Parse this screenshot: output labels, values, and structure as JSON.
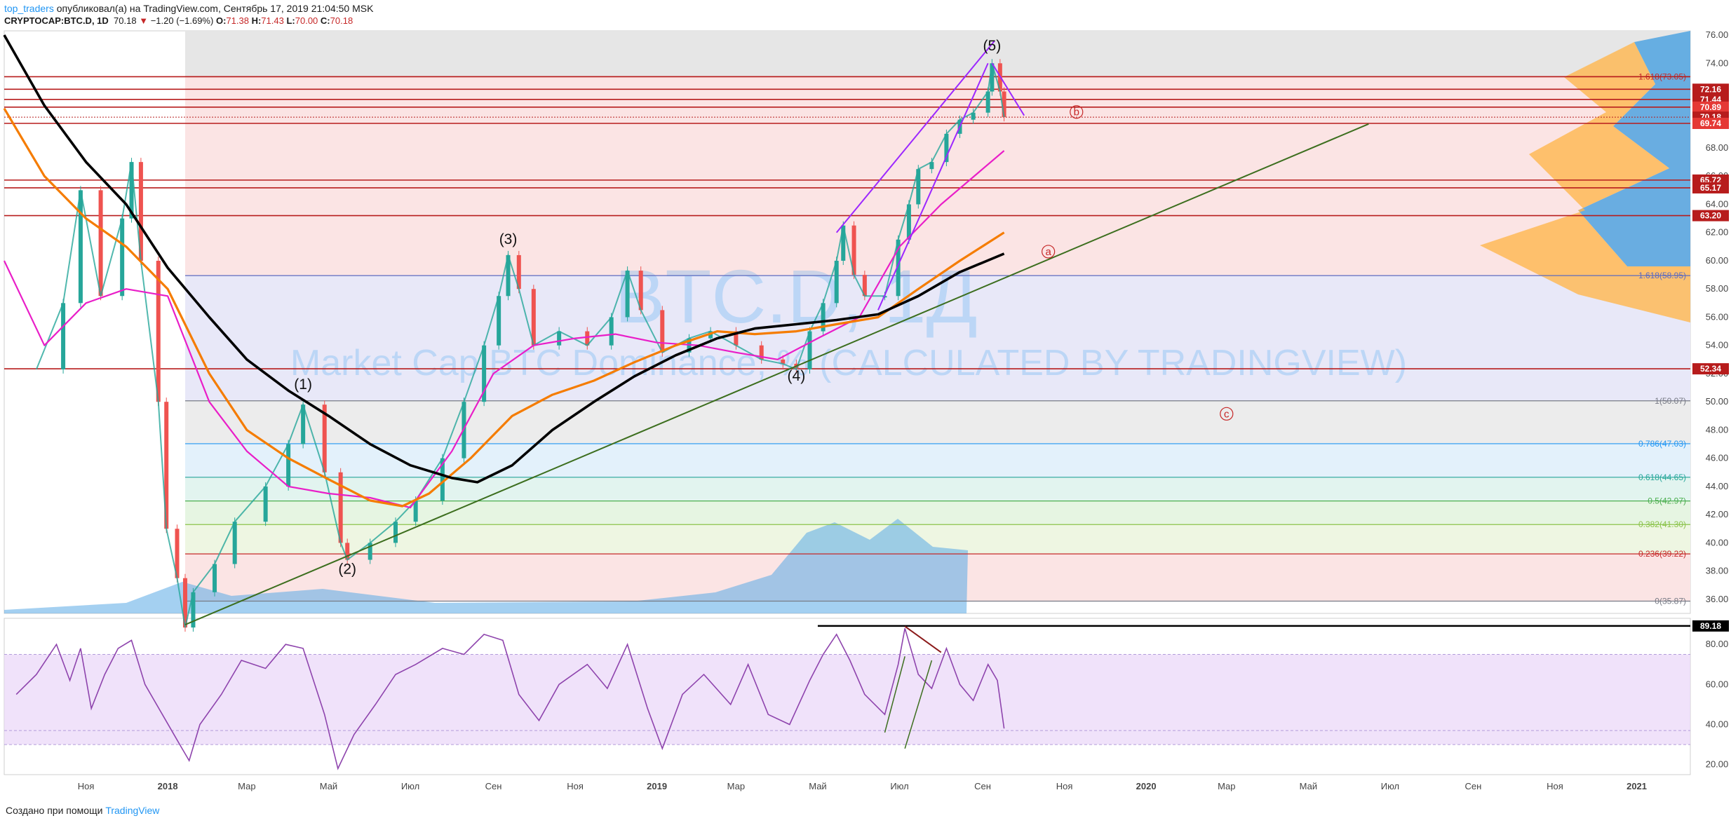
{
  "header": {
    "author": "top_traders",
    "published_text": "опубликовал(а) на TradingView.com, Сентябрь 17, 2019 21:04:50 MSK",
    "symbol": "CRYPTOCAP:BTC.D, 1D",
    "last": "70.18",
    "arrow": "▼",
    "change": "−1.20 (−1.69%)",
    "o_label": "O:",
    "o_val": "71.38",
    "h_label": "H:",
    "h_val": "71.43",
    "l_label": "L:",
    "l_val": "70.00",
    "c_label": "C:",
    "c_val": "70.18"
  },
  "footer": {
    "created_with": "Создано при помощи",
    "brand": "TradingView"
  },
  "colors": {
    "up_candle": "#26a69a",
    "down_candle": "#ef5350",
    "ma_black": "#000000",
    "ma_orange": "#f57c00",
    "ma_magenta": "#e91ec8",
    "trend_green": "#3c6e1e",
    "channel_purple": "#9c27ff",
    "volume_profile_blue": "#4fa3e0",
    "volume_profile_orange": "#ffb74d",
    "rsi_line": "#8e44ad",
    "rsi_band": "#e9d5f8",
    "hline_red": "#b71c1c"
  },
  "chart_data": {
    "type": "line",
    "title": "",
    "watermark_ticker": "BTC.D, 1Д",
    "watermark_name": "Market Cap BTC Dominance, % (CALCULATED BY TRADINGVIEW)",
    "x_ticks": [
      "Ноя",
      "2018",
      "Мар",
      "Май",
      "Июл",
      "Сен",
      "Ноя",
      "2019",
      "Мар",
      "Май",
      "Июл",
      "Сен",
      "Ноя",
      "2020",
      "Мар",
      "Май",
      "Июл",
      "Сен",
      "Ноя",
      "2021"
    ],
    "x_range": [
      "2017-09",
      "2021-02"
    ],
    "y_ticks": [
      36.0,
      38.0,
      40.0,
      42.0,
      44.0,
      46.0,
      48.0,
      50.0,
      52.0,
      54.0,
      56.0,
      58.0,
      60.0,
      62.0,
      64.0,
      66.0,
      68.0,
      70.0,
      72.0,
      74.0,
      76.0
    ],
    "ylim": [
      35,
      76.3
    ],
    "price_series": {
      "name": "",
      "points": [
        [
          "2017-09-25",
          52.3
        ],
        [
          "2017-10-15",
          57.0
        ],
        [
          "2017-10-28",
          65.0
        ],
        [
          "2017-11-12",
          57.5
        ],
        [
          "2017-11-28",
          63.0
        ],
        [
          "2017-12-05",
          67.0
        ],
        [
          "2017-12-12",
          60.0
        ],
        [
          "2017-12-25",
          50.0
        ],
        [
          "2017-12-31",
          41.0
        ],
        [
          "2018-01-08",
          37.5
        ],
        [
          "2018-01-14",
          34.0
        ],
        [
          "2018-01-20",
          36.5
        ],
        [
          "2018-02-05",
          38.5
        ],
        [
          "2018-02-20",
          41.5
        ],
        [
          "2018-03-15",
          44.0
        ],
        [
          "2018-04-01",
          47.0
        ],
        [
          "2018-04-12",
          49.8
        ],
        [
          "2018-04-28",
          45.0
        ],
        [
          "2018-05-10",
          40.0
        ],
        [
          "2018-05-15",
          38.8
        ],
        [
          "2018-06-01",
          40.0
        ],
        [
          "2018-06-20",
          41.5
        ],
        [
          "2018-07-05",
          43.0
        ],
        [
          "2018-07-25",
          46.0
        ],
        [
          "2018-08-10",
          50.0
        ],
        [
          "2018-08-25",
          54.0
        ],
        [
          "2018-09-05",
          57.5
        ],
        [
          "2018-09-12",
          60.4
        ],
        [
          "2018-09-20",
          58.0
        ],
        [
          "2018-10-01",
          54.0
        ],
        [
          "2018-10-20",
          55.0
        ],
        [
          "2018-11-10",
          54.0
        ],
        [
          "2018-11-28",
          56.0
        ],
        [
          "2018-12-10",
          59.3
        ],
        [
          "2018-12-20",
          56.5
        ],
        [
          "2019-01-05",
          53.5
        ],
        [
          "2019-01-25",
          54.5
        ],
        [
          "2019-02-10",
          55.0
        ],
        [
          "2019-03-01",
          54.0
        ],
        [
          "2019-03-20",
          53.0
        ],
        [
          "2019-04-05",
          52.7
        ],
        [
          "2019-04-15",
          52.3
        ],
        [
          "2019-04-25",
          55.0
        ],
        [
          "2019-05-05",
          57.0
        ],
        [
          "2019-05-15",
          60.0
        ],
        [
          "2019-05-20",
          62.5
        ],
        [
          "2019-05-28",
          59.0
        ],
        [
          "2019-06-05",
          57.5
        ],
        [
          "2019-06-20",
          57.5
        ],
        [
          "2019-06-30",
          61.5
        ],
        [
          "2019-07-08",
          64.0
        ],
        [
          "2019-07-15",
          66.5
        ],
        [
          "2019-07-25",
          67.0
        ],
        [
          "2019-08-05",
          69.0
        ],
        [
          "2019-08-15",
          70.0
        ],
        [
          "2019-08-25",
          70.5
        ],
        [
          "2019-09-05",
          72.0
        ],
        [
          "2019-09-08",
          74.0
        ],
        [
          "2019-09-14",
          72.0
        ],
        [
          "2019-09-17",
          70.18
        ]
      ]
    },
    "ema_black": [
      [
        "2017-09-01",
        76.0
      ],
      [
        "2017-10-01",
        71.0
      ],
      [
        "2017-11-01",
        67.0
      ],
      [
        "2017-12-01",
        64.0
      ],
      [
        "2018-01-01",
        59.5
      ],
      [
        "2018-02-01",
        56.0
      ],
      [
        "2018-03-01",
        53.0
      ],
      [
        "2018-04-01",
        50.8
      ],
      [
        "2018-05-01",
        49.0
      ],
      [
        "2018-06-01",
        47.0
      ],
      [
        "2018-07-01",
        45.5
      ],
      [
        "2018-08-01",
        44.6
      ],
      [
        "2018-08-20",
        44.3
      ],
      [
        "2018-09-15",
        45.5
      ],
      [
        "2018-10-15",
        48.0
      ],
      [
        "2018-11-15",
        50.0
      ],
      [
        "2018-12-15",
        51.8
      ],
      [
        "2019-01-15",
        53.3
      ],
      [
        "2019-02-15",
        54.5
      ],
      [
        "2019-03-15",
        55.2
      ],
      [
        "2019-04-15",
        55.5
      ],
      [
        "2019-05-15",
        55.8
      ],
      [
        "2019-06-15",
        56.2
      ],
      [
        "2019-07-15",
        57.5
      ],
      [
        "2019-08-15",
        59.2
      ],
      [
        "2019-09-17",
        60.5
      ]
    ],
    "ema_orange": [
      [
        "2017-09-01",
        70.8
      ],
      [
        "2017-10-01",
        66.0
      ],
      [
        "2017-11-01",
        63.0
      ],
      [
        "2017-12-01",
        61.0
      ],
      [
        "2018-01-01",
        58.0
      ],
      [
        "2018-02-01",
        52.0
      ],
      [
        "2018-03-01",
        48.0
      ],
      [
        "2018-04-01",
        46.0
      ],
      [
        "2018-05-01",
        44.5
      ],
      [
        "2018-06-01",
        43.0
      ],
      [
        "2018-06-25",
        42.6
      ],
      [
        "2018-07-15",
        43.5
      ],
      [
        "2018-08-15",
        46.0
      ],
      [
        "2018-09-15",
        49.0
      ],
      [
        "2018-10-15",
        50.5
      ],
      [
        "2018-11-15",
        51.5
      ],
      [
        "2018-12-15",
        52.8
      ],
      [
        "2019-01-15",
        54.0
      ],
      [
        "2019-02-15",
        55.0
      ],
      [
        "2019-03-15",
        54.8
      ],
      [
        "2019-04-15",
        55.0
      ],
      [
        "2019-05-15",
        55.5
      ],
      [
        "2019-06-15",
        56.0
      ],
      [
        "2019-07-15",
        58.0
      ],
      [
        "2019-08-15",
        60.0
      ],
      [
        "2019-09-17",
        62.0
      ]
    ],
    "ema_magenta": [
      [
        "2017-09-01",
        60.0
      ],
      [
        "2017-10-01",
        54.0
      ],
      [
        "2017-11-01",
        57.0
      ],
      [
        "2017-12-01",
        58.0
      ],
      [
        "2018-01-01",
        57.5
      ],
      [
        "2018-02-01",
        50.0
      ],
      [
        "2018-03-01",
        46.5
      ],
      [
        "2018-04-01",
        44.0
      ],
      [
        "2018-05-01",
        43.5
      ],
      [
        "2018-06-01",
        43.2
      ],
      [
        "2018-07-01",
        42.5
      ],
      [
        "2018-08-01",
        46.5
      ],
      [
        "2018-09-01",
        52.0
      ],
      [
        "2018-10-01",
        54.0
      ],
      [
        "2018-11-01",
        54.5
      ],
      [
        "2018-12-01",
        54.8
      ],
      [
        "2019-01-01",
        54.2
      ],
      [
        "2019-02-01",
        54.0
      ],
      [
        "2019-03-01",
        53.5
      ],
      [
        "2019-04-01",
        53.0
      ],
      [
        "2019-05-01",
        54.5
      ],
      [
        "2019-06-01",
        56.0
      ],
      [
        "2019-07-01",
        61.0
      ],
      [
        "2019-08-01",
        64.0
      ],
      [
        "2019-09-17",
        67.8
      ]
    ],
    "horizontal_levels": [
      73.05,
      72.16,
      71.44,
      70.89,
      70.18,
      69.74,
      65.72,
      65.17,
      63.2,
      52.34
    ],
    "price_tags": [
      {
        "value": 72.16,
        "label": "72.16"
      },
      {
        "value": 71.44,
        "label": "71.44"
      },
      {
        "value": 70.89,
        "label": "70.89"
      },
      {
        "value": 70.18,
        "label": "70.18"
      },
      {
        "value": 69.74,
        "label": "69.74"
      },
      {
        "value": 65.72,
        "label": "65.72"
      },
      {
        "value": 65.17,
        "label": "65.17"
      },
      {
        "value": 63.2,
        "label": "63.20"
      },
      {
        "value": 52.34,
        "label": "52.34"
      }
    ],
    "fibonacci": [
      {
        "label": "1.618(58.95)",
        "value": 58.95,
        "color": "#5c6bc0"
      },
      {
        "label": "1(50.07)",
        "value": 50.07,
        "color": "#787b86"
      },
      {
        "label": "0.786(47.03)",
        "value": 47.03,
        "color": "#2196f3"
      },
      {
        "label": "0.618(44.65)",
        "value": 44.65,
        "color": "#26a69a"
      },
      {
        "label": "0.5(42.97)",
        "value": 42.97,
        "color": "#4caf50"
      },
      {
        "label": "0.382(41.30)",
        "value": 41.3,
        "color": "#8bc34a"
      },
      {
        "label": "0.236(39.22)",
        "value": 39.22,
        "color": "#c62828"
      },
      {
        "label": "0(35.87)",
        "value": 35.87,
        "color": "#787b86"
      },
      {
        "label": "1.618(73.05)",
        "value": 73.05,
        "color": "#c62828"
      }
    ],
    "wave_labels": [
      {
        "label": "(1)",
        "date": "2018-04-12",
        "value": 50.9
      },
      {
        "label": "(2)",
        "date": "2018-05-15",
        "value": 37.8
      },
      {
        "label": "(3)",
        "date": "2018-09-12",
        "value": 61.2
      },
      {
        "label": "(4)",
        "date": "2019-04-15",
        "value": 51.5
      },
      {
        "label": "(5)",
        "date": "2019-09-08",
        "value": 74.9
      }
    ],
    "correction_labels": [
      {
        "label": "b",
        "date": "2019-11-10",
        "value": 70.3
      },
      {
        "label": "a",
        "date": "2019-10-20",
        "value": 60.4
      },
      {
        "label": "c",
        "date": "2020-03-01",
        "value": 48.9
      }
    ],
    "rsi": {
      "y_ticks": [
        20.0,
        40.0,
        60.0,
        80.0
      ],
      "ylim": [
        15,
        93
      ],
      "band": [
        30,
        75
      ],
      "level_label": "89.18",
      "level_value": 89.18,
      "points": [
        [
          "2017-09-10",
          55
        ],
        [
          "2017-09-25",
          65
        ],
        [
          "2017-10-10",
          80
        ],
        [
          "2017-10-20",
          62
        ],
        [
          "2017-10-28",
          78
        ],
        [
          "2017-11-05",
          48
        ],
        [
          "2017-11-15",
          65
        ],
        [
          "2017-11-25",
          78
        ],
        [
          "2017-12-05",
          82
        ],
        [
          "2017-12-15",
          60
        ],
        [
          "2017-12-28",
          45
        ],
        [
          "2018-01-10",
          30
        ],
        [
          "2018-01-17",
          22
        ],
        [
          "2018-01-25",
          40
        ],
        [
          "2018-02-10",
          55
        ],
        [
          "2018-02-25",
          72
        ],
        [
          "2018-03-15",
          68
        ],
        [
          "2018-03-30",
          80
        ],
        [
          "2018-04-12",
          78
        ],
        [
          "2018-04-28",
          45
        ],
        [
          "2018-05-08",
          18
        ],
        [
          "2018-05-20",
          35
        ],
        [
          "2018-06-05",
          50
        ],
        [
          "2018-06-20",
          65
        ],
        [
          "2018-07-05",
          70
        ],
        [
          "2018-07-25",
          78
        ],
        [
          "2018-08-10",
          75
        ],
        [
          "2018-08-25",
          85
        ],
        [
          "2018-09-08",
          82
        ],
        [
          "2018-09-20",
          55
        ],
        [
          "2018-10-05",
          42
        ],
        [
          "2018-10-20",
          60
        ],
        [
          "2018-11-10",
          70
        ],
        [
          "2018-11-25",
          58
        ],
        [
          "2018-12-10",
          80
        ],
        [
          "2018-12-25",
          48
        ],
        [
          "2019-01-05",
          28
        ],
        [
          "2019-01-20",
          55
        ],
        [
          "2019-02-05",
          65
        ],
        [
          "2019-02-25",
          50
        ],
        [
          "2019-03-10",
          70
        ],
        [
          "2019-03-25",
          45
        ],
        [
          "2019-04-10",
          40
        ],
        [
          "2019-04-25",
          62
        ],
        [
          "2019-05-05",
          75
        ],
        [
          "2019-05-15",
          85
        ],
        [
          "2019-05-25",
          72
        ],
        [
          "2019-06-05",
          55
        ],
        [
          "2019-06-20",
          45
        ],
        [
          "2019-06-30",
          70
        ],
        [
          "2019-07-05",
          88
        ],
        [
          "2019-07-15",
          65
        ],
        [
          "2019-07-25",
          58
        ],
        [
          "2019-08-05",
          78
        ],
        [
          "2019-08-15",
          60
        ],
        [
          "2019-08-25",
          52
        ],
        [
          "2019-09-05",
          70
        ],
        [
          "2019-09-12",
          62
        ],
        [
          "2019-09-17",
          38
        ]
      ]
    },
    "grid": false,
    "legend": "none"
  }
}
